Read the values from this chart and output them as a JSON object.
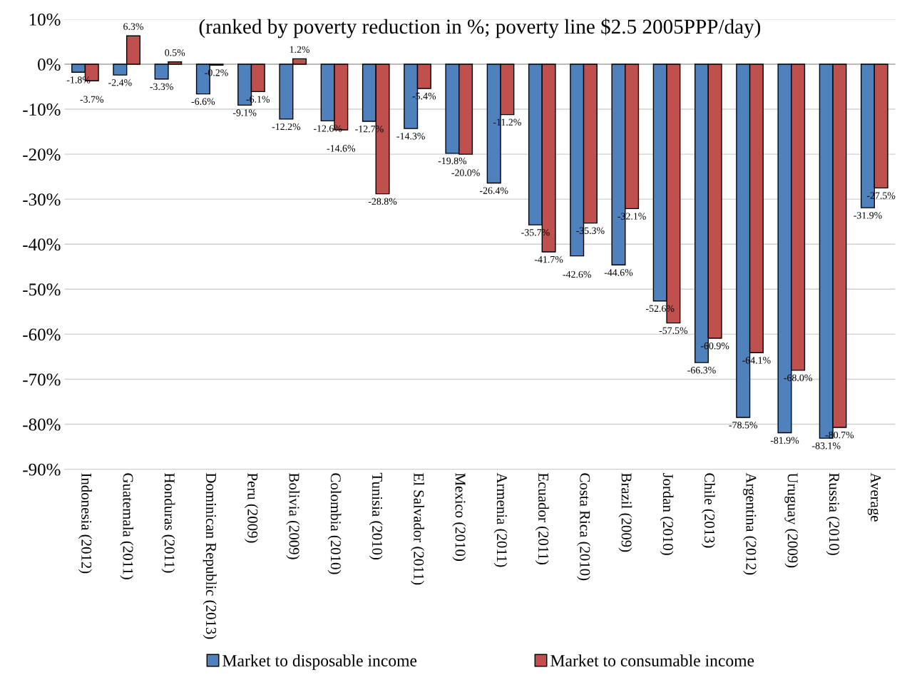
{
  "chart_data": {
    "type": "bar",
    "title": "(ranked by poverty reduction in %; poverty line $2.5 2005PPP/day)",
    "categories": [
      "Indonesia (2012)",
      "Guatemala (2011)",
      "Honduras (2011)",
      "Dominican Republic (2013)",
      "Peru (2009)",
      "Bolivia (2009)",
      "Colombia (2010)",
      "Tunisia (2010)",
      "El Salvador (2011)",
      "Mexico (2010)",
      "Armenia (2011)",
      "Ecuador (2011)",
      "Costa Rica (2010)",
      "Brazil (2009)",
      "Jordan (2010)",
      "Chile (2013)",
      "Argentina (2012)",
      "Uruguay (2009)",
      "Russia (2010)",
      "Average"
    ],
    "series": [
      {
        "name": "Market to disposable income",
        "color": "#4f81bd",
        "values": [
          -1.8,
          -2.4,
          -3.3,
          -6.6,
          -9.1,
          -12.2,
          -12.6,
          -12.7,
          -14.3,
          -19.8,
          -26.4,
          -35.7,
          -42.6,
          -44.6,
          -52.6,
          -66.3,
          -78.5,
          -81.9,
          -83.1,
          -31.9
        ],
        "value_labels": [
          "-1.8%",
          "-2.4%",
          "-3.3%",
          "-6.6%",
          "-9.1%",
          "-12.2%",
          "-12.6%",
          "-12.7%",
          "-14.3%",
          "-19.8%",
          "-26.4%",
          "-35.7%",
          "-42.6%",
          "-44.6%",
          "-52.6%",
          "-66.3%",
          "-78.5%",
          "-81.9%",
          "-83.1%",
          "-31.9%"
        ]
      },
      {
        "name": "Market to consumable income",
        "color": "#c0504d",
        "values": [
          -3.7,
          6.3,
          0.5,
          -0.2,
          -6.1,
          1.2,
          -14.6,
          -28.8,
          -5.4,
          -20.0,
          -11.2,
          -41.7,
          -35.3,
          -32.1,
          -57.5,
          -60.9,
          -64.1,
          -68.0,
          -80.7,
          -27.5
        ],
        "value_labels": [
          "-3.7%",
          "6.3%",
          "0.5%",
          "-0.2%",
          "-6.1%",
          "1.2%",
          "-14.6%",
          "-28.8%",
          "-5.4%",
          "-20.0%",
          "-11.2%",
          "-41.7%",
          "-35.3%",
          "-32.1%",
          "-57.5%",
          "-60.9%",
          "-64.1%",
          "-68.0%",
          "-80.7%",
          "-27.5%"
        ]
      }
    ],
    "ylim": [
      -90,
      10
    ],
    "yticks": [
      {
        "value": 10,
        "label": "10%"
      },
      {
        "value": 0,
        "label": "0%"
      },
      {
        "value": -10,
        "label": "-10%"
      },
      {
        "value": -20,
        "label": "-20%"
      },
      {
        "value": -30,
        "label": "-30%"
      },
      {
        "value": -40,
        "label": "-40%"
      },
      {
        "value": -50,
        "label": "-50%"
      },
      {
        "value": -60,
        "label": "-60%"
      },
      {
        "value": -70,
        "label": "-70%"
      },
      {
        "value": -80,
        "label": "-80%"
      },
      {
        "value": -90,
        "label": "-90%"
      }
    ],
    "grid": "y",
    "legend": "bottom"
  }
}
